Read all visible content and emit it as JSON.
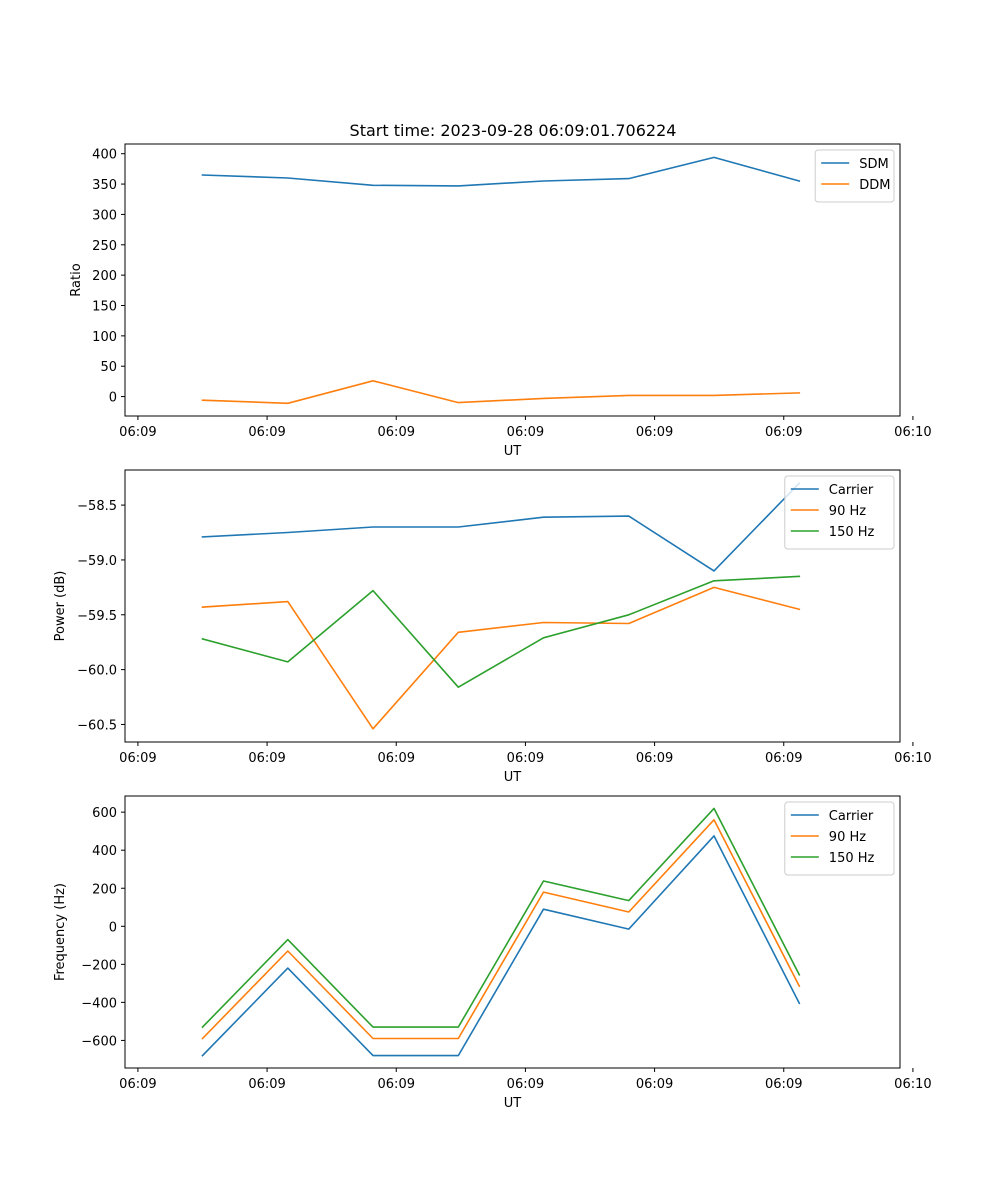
{
  "title": "Start time: 2023-09-28 06:09:01.706224",
  "colors": {
    "blue": "#1f77b4",
    "orange": "#ff7f0e",
    "green": "#2ca02c"
  },
  "chart_data": [
    {
      "type": "line",
      "title": "Start time: 2023-09-28 06:09:01.706224",
      "xlabel": "UT",
      "ylabel": "Ratio",
      "x": [
        0.5,
        1.16,
        1.82,
        2.48,
        3.14,
        3.8,
        4.46,
        5.12
      ],
      "xlim": [
        -0.1,
        5.9
      ],
      "xticks": [
        0,
        1,
        2,
        3,
        4,
        5,
        6
      ],
      "xtick_labels": [
        "06:09",
        "06:09",
        "06:09",
        "06:09",
        "06:09",
        "06:09",
        "06:10"
      ],
      "ylim": [
        -32,
        416
      ],
      "yticks": [
        0,
        50,
        100,
        150,
        200,
        250,
        300,
        350,
        400
      ],
      "ytick_labels": [
        "0",
        "50",
        "100",
        "150",
        "200",
        "250",
        "300",
        "350",
        "400"
      ],
      "legend": "top-right",
      "series": [
        {
          "name": "SDM",
          "color": "#1f77b4",
          "values": [
            365,
            360,
            348,
            347,
            355,
            359,
            394,
            355
          ]
        },
        {
          "name": "DDM",
          "color": "#ff7f0e",
          "values": [
            -6,
            -11,
            26,
            -10,
            -3,
            2,
            2,
            6
          ]
        }
      ]
    },
    {
      "type": "line",
      "title": "",
      "xlabel": "UT",
      "ylabel": "Power (dB)",
      "x": [
        0.5,
        1.16,
        1.82,
        2.48,
        3.14,
        3.8,
        4.46,
        5.12
      ],
      "xlim": [
        -0.1,
        5.9
      ],
      "xticks": [
        0,
        1,
        2,
        3,
        4,
        5,
        6
      ],
      "xtick_labels": [
        "06:09",
        "06:09",
        "06:09",
        "06:09",
        "06:09",
        "06:09",
        "06:10"
      ],
      "ylim": [
        -60.66,
        -58.18
      ],
      "yticks": [
        -60.5,
        -60.0,
        -59.5,
        -59.0,
        -58.5
      ],
      "ytick_labels": [
        "−60.5",
        "−60.0",
        "−59.5",
        "−59.0",
        "−58.5"
      ],
      "legend": "top-right",
      "series": [
        {
          "name": "Carrier",
          "color": "#1f77b4",
          "values": [
            -58.79,
            -58.75,
            -58.7,
            -58.7,
            -58.61,
            -58.6,
            -59.1,
            -58.3
          ]
        },
        {
          "name": "90 Hz",
          "color": "#ff7f0e",
          "values": [
            -59.43,
            -59.38,
            -60.54,
            -59.66,
            -59.57,
            -59.58,
            -59.25,
            -59.45
          ]
        },
        {
          "name": "150 Hz",
          "color": "#2ca02c",
          "values": [
            -59.72,
            -59.93,
            -59.28,
            -60.16,
            -59.71,
            -59.5,
            -59.19,
            -59.15
          ]
        }
      ]
    },
    {
      "type": "line",
      "title": "",
      "xlabel": "UT",
      "ylabel": "Frequency (Hz)",
      "x": [
        0.5,
        1.16,
        1.82,
        2.48,
        3.14,
        3.8,
        4.46,
        5.12
      ],
      "xlim": [
        -0.1,
        5.9
      ],
      "xticks": [
        0,
        1,
        2,
        3,
        4,
        5,
        6
      ],
      "xtick_labels": [
        "06:09",
        "06:09",
        "06:09",
        "06:09",
        "06:09",
        "06:09",
        "06:10"
      ],
      "ylim": [
        -745,
        685
      ],
      "yticks": [
        -600,
        -400,
        -200,
        0,
        200,
        400,
        600
      ],
      "ytick_labels": [
        "−600",
        "−400",
        "−200",
        "0",
        "200",
        "400",
        "600"
      ],
      "legend": "top-right",
      "series": [
        {
          "name": "Carrier",
          "color": "#1f77b4",
          "values": [
            -680,
            -220,
            -680,
            -680,
            90,
            -15,
            475,
            -405
          ]
        },
        {
          "name": "90 Hz",
          "color": "#ff7f0e",
          "values": [
            -590,
            -130,
            -590,
            -590,
            180,
            75,
            560,
            -315
          ]
        },
        {
          "name": "150 Hz",
          "color": "#2ca02c",
          "values": [
            -530,
            -70,
            -530,
            -530,
            238,
            135,
            620,
            -255
          ]
        }
      ]
    }
  ]
}
